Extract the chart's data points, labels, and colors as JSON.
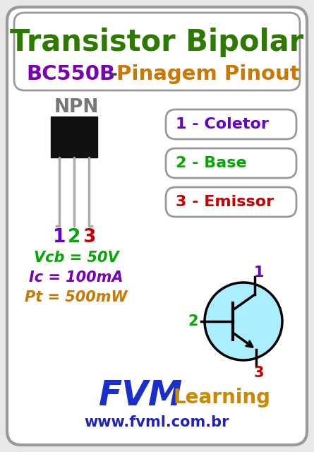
{
  "bg_color": "#e8e8e8",
  "border_color": "#999999",
  "title1": "Transistor Bipolar",
  "title2_part1": "BC550B",
  "title2_dash": " - ",
  "title2_part2": "Pinagem Pinout",
  "title1_color": "#2d7a00",
  "title2_color1": "#7b00b4",
  "title2_color2": "#cc7700",
  "header_bg": "#ffffff",
  "npn_label": "NPN",
  "npn_color": "#777777",
  "pin_labels": [
    "1",
    "2",
    "3"
  ],
  "pin_colors": [
    "#6600cc",
    "#00aa00",
    "#cc0000"
  ],
  "box_labels": [
    "1 - Coletor",
    "2 - Base",
    "3 - Emissor"
  ],
  "box_label_num_colors": [
    "#6600cc",
    "#00aa00",
    "#cc0000"
  ],
  "box_border_color": "#999999",
  "box_bg": "#ffffff",
  "specs": [
    "Vcb = 50V",
    "Ic = 100mA",
    "Pt = 500mW"
  ],
  "spec_colors": [
    "#00aa00",
    "#7b00b4",
    "#cc7700"
  ],
  "fvm_color": "#1a2ecc",
  "learning_color": "#cc8800",
  "fvm_text": "FVM",
  "learning_text": "Learning",
  "website": "www.fvml.com.br",
  "website_color": "#2222bb",
  "circle_color": "#aaeeff",
  "circle_border": "#000000",
  "symbol_color": "#000000",
  "pin1_sym_color": "#6600cc",
  "pin2_sym_color": "#00aa00",
  "pin3_sym_color": "#cc0000"
}
